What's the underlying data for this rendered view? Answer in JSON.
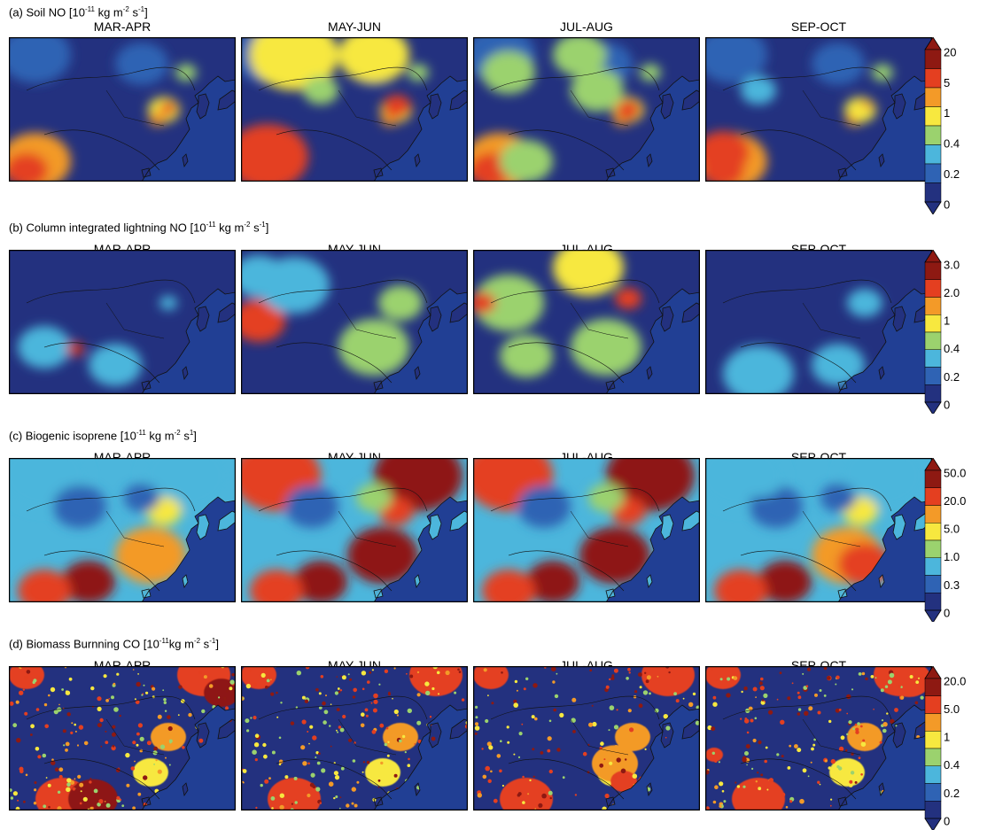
{
  "seasons": [
    "MAR-APR",
    "MAY-JUN",
    "JUL-AUG",
    "SEP-OCT"
  ],
  "palette": [
    "#23317f",
    "#2f63b4",
    "#4cb6dc",
    "#9bd26e",
    "#f7e83f",
    "#f39a28",
    "#e43f20",
    "#8e1912"
  ],
  "ocean_color": "#213f94",
  "panels": [
    {
      "id": "a",
      "title_prefix": "(a) Soil NO [10",
      "title_exp": "-11",
      "title_mid": " kg m",
      "title_exp2": "-2",
      "title_mid2": " s",
      "title_exp3": "-1",
      "title_suffix": "]",
      "colorbar_ticks": [
        "20",
        "5",
        "1",
        "0.4",
        "0.2",
        "0"
      ]
    },
    {
      "id": "b",
      "title_prefix": "(b) Column integrated lightning NO [10",
      "title_exp": "-11",
      "title_mid": " kg m",
      "title_exp2": "-2",
      "title_mid2": " s",
      "title_exp3": "-1",
      "title_suffix": "]",
      "colorbar_ticks": [
        "3.0",
        "2.0",
        "1",
        "0.4",
        "0.2",
        "0"
      ]
    },
    {
      "id": "c",
      "title_prefix": "(c) Biogenic isoprene [10",
      "title_exp": "-11",
      "title_mid": " kg m",
      "title_exp2": "-2",
      "title_mid2": " s",
      "title_exp3": "1",
      "title_suffix": "]",
      "colorbar_ticks": [
        "50.0",
        "20.0",
        "5.0",
        "1.0",
        "0.3",
        "0"
      ]
    },
    {
      "id": "d",
      "title_prefix": "(d) Biomass Burnning CO [10",
      "title_exp": "-11",
      "title_mid": "kg m",
      "title_exp2": "-2",
      "title_mid2": " s",
      "title_exp3": "-1",
      "title_suffix": "]",
      "colorbar_ticks": [
        "20.0",
        "5.0",
        "1",
        "0.4",
        "0.2",
        "0"
      ]
    }
  ]
}
